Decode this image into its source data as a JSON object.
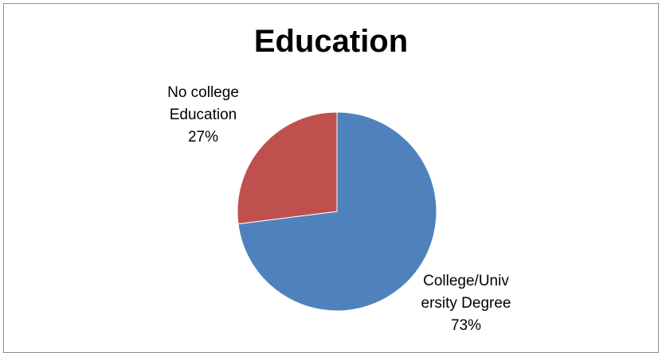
{
  "chart_data": {
    "type": "pie",
    "title": "Education",
    "slices": [
      {
        "name": "College/University Degree",
        "label_lines": [
          "College/Univ",
          "ersity Degree"
        ],
        "percent_label": "73%",
        "value": 73,
        "color": "#4F81BD"
      },
      {
        "name": "No college Education",
        "label_lines": [
          "No college",
          "Education"
        ],
        "percent_label": "27%",
        "value": 27,
        "color": "#C0504D"
      }
    ],
    "start": "12 o'clock",
    "direction": "clockwise",
    "legend": "none"
  }
}
